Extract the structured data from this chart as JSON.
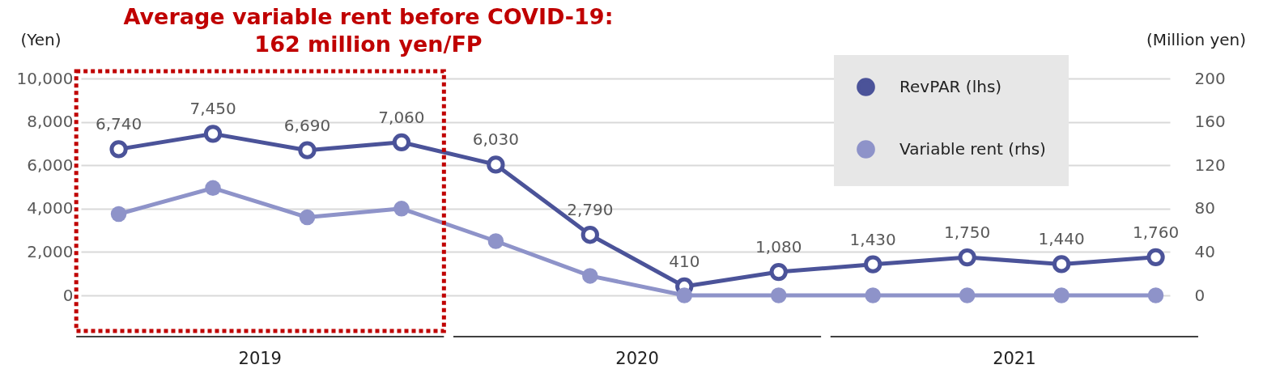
{
  "chart_data": {
    "type": "line",
    "title": "Average variable rent before COVID-19: 162 million yen/FP",
    "ylabel": "(Yen)",
    "y2label": "(Million yen)",
    "categories": [
      null,
      null,
      null,
      null,
      null,
      null,
      null,
      null,
      null,
      null,
      null,
      null
    ],
    "series": [
      {
        "name": "RevPAR (lhs)",
        "color": "#4b5399",
        "values": [
          6740,
          7450,
          6690,
          7060,
          6030,
          2790,
          410,
          1080,
          1430,
          1750,
          1440,
          1760
        ],
        "value_labels": [
          "6,740",
          "7,450",
          "6,690",
          "7,060",
          "6,030",
          "2,790",
          "410",
          "1,080",
          "1,430",
          "1,750",
          "1,440",
          "1,760"
        ]
      },
      {
        "name": "Variable rent (rhs)",
        "color": "#8e93c9",
        "axis": "y2",
        "values": [
          75,
          99,
          72,
          80,
          50,
          18,
          0,
          0,
          0,
          0,
          0,
          0
        ]
      }
    ],
    "ylim": [
      0,
      10000
    ],
    "yticks": [
      0,
      {
        "value": 2000,
        "label": "2,000"
      },
      {
        "value": 4000,
        "label": "4,000"
      },
      {
        "value": 6000,
        "label": "6,000"
      },
      {
        "value": 8000,
        "label": "8,000"
      },
      {
        "value": 10000,
        "label": "10,000"
      }
    ],
    "y2lim": [
      0,
      200
    ],
    "y2ticks": [
      0,
      40,
      80,
      120,
      160,
      200
    ],
    "annotations": [
      "2019",
      "2020",
      "2021"
    ],
    "grid": "y",
    "legend": "top right",
    "marker": "circle",
    "line_style": "solid"
  }
}
